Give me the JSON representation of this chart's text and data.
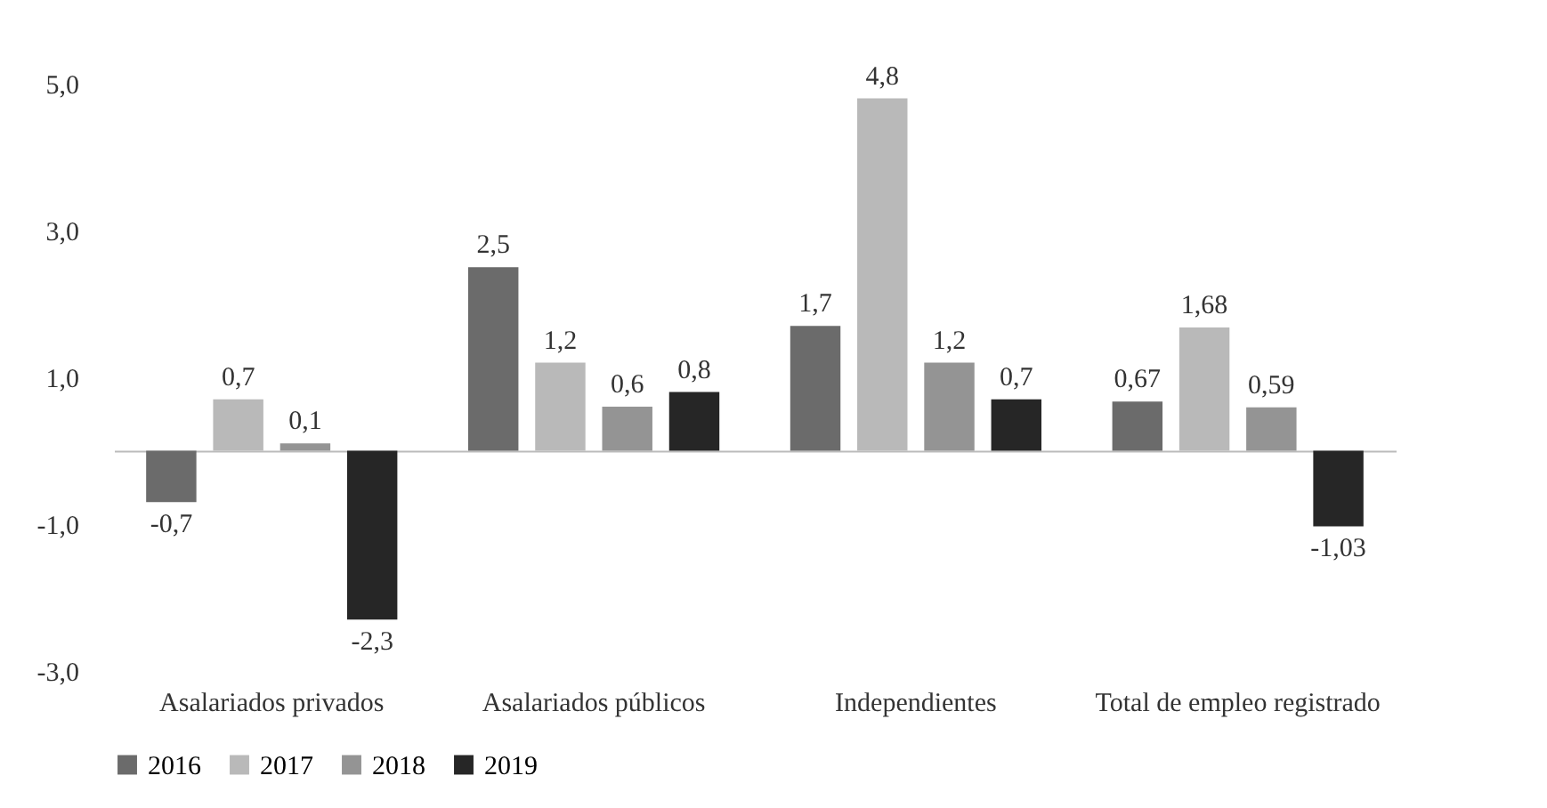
{
  "chart_data": {
    "type": "bar",
    "categories": [
      "Asalariados privados",
      "Asalariados públicos",
      "Independientes",
      "Total de empleo registrado"
    ],
    "series": [
      {
        "name": "2016",
        "color": "#6b6b6b",
        "values": [
          -0.7,
          2.5,
          1.7,
          0.67
        ],
        "value_labels": [
          "-0,7",
          "2,5",
          "1,7",
          "0,67"
        ]
      },
      {
        "name": "2017",
        "color": "#b9b9b9",
        "values": [
          0.7,
          1.2,
          4.8,
          1.68
        ],
        "value_labels": [
          "0,7",
          "1,2",
          "4,8",
          "1,68"
        ]
      },
      {
        "name": "2018",
        "color": "#949494",
        "values": [
          0.1,
          0.6,
          1.2,
          0.59
        ],
        "value_labels": [
          "0,1",
          "0,6",
          "1,2",
          "0,59"
        ]
      },
      {
        "name": "2019",
        "color": "#262626",
        "values": [
          -2.3,
          0.8,
          0.7,
          -1.03
        ],
        "value_labels": [
          "-2,3",
          "0,8",
          "0,7",
          "-1,03"
        ]
      }
    ],
    "ylim": [
      -3,
      5
    ],
    "yticks": [
      {
        "value": -3,
        "label": "-3,0"
      },
      {
        "value": -1,
        "label": "-1,0"
      },
      {
        "value": 1,
        "label": "1,0"
      },
      {
        "value": 3,
        "label": "3,0"
      },
      {
        "value": 5,
        "label": "5,0"
      }
    ],
    "grid": false,
    "legend": "bottom"
  }
}
